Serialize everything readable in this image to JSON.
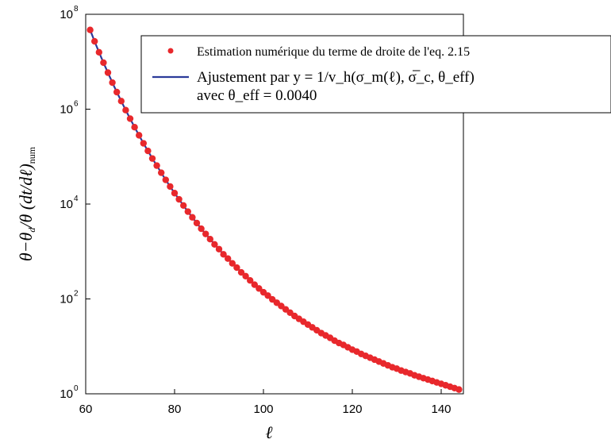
{
  "chart_data": {
    "type": "scatter",
    "x": [
      61,
      62,
      63,
      64,
      65,
      66,
      67,
      68,
      69,
      70,
      71,
      72,
      73,
      74,
      75,
      76,
      77,
      78,
      79,
      80,
      81,
      82,
      83,
      84,
      85,
      86,
      87,
      88,
      89,
      90,
      91,
      92,
      93,
      94,
      95,
      96,
      97,
      98,
      99,
      100,
      101,
      102,
      103,
      104,
      105,
      106,
      107,
      108,
      109,
      110,
      111,
      112,
      113,
      114,
      115,
      116,
      117,
      118,
      119,
      120,
      121,
      122,
      123,
      124,
      125,
      126,
      127,
      128,
      129,
      130,
      131,
      132,
      133,
      134,
      135,
      136,
      137,
      138,
      139,
      140,
      141,
      142,
      143,
      144
    ],
    "series": [
      {
        "name": "Estimation numérique du terme de droite de l'eq. 2.15",
        "kind": "scatter",
        "color": "#e8282c",
        "y_log10": [
          7.67,
          7.43,
          7.2,
          6.98,
          6.77,
          6.56,
          6.36,
          6.17,
          5.98,
          5.8,
          5.62,
          5.45,
          5.28,
          5.12,
          4.96,
          4.81,
          4.66,
          4.51,
          4.37,
          4.23,
          4.1,
          3.97,
          3.84,
          3.72,
          3.6,
          3.48,
          3.37,
          3.26,
          3.15,
          3.05,
          2.94,
          2.85,
          2.75,
          2.66,
          2.56,
          2.48,
          2.39,
          2.3,
          2.22,
          2.14,
          2.07,
          1.99,
          1.92,
          1.85,
          1.78,
          1.71,
          1.64,
          1.58,
          1.52,
          1.46,
          1.4,
          1.34,
          1.28,
          1.23,
          1.18,
          1.12,
          1.07,
          1.03,
          0.98,
          0.93,
          0.89,
          0.84,
          0.8,
          0.76,
          0.72,
          0.68,
          0.64,
          0.6,
          0.56,
          0.53,
          0.49,
          0.46,
          0.43,
          0.39,
          0.36,
          0.33,
          0.3,
          0.27,
          0.24,
          0.21,
          0.18,
          0.15,
          0.12,
          0.09
        ]
      },
      {
        "name": "Ajustement par y = 1/v_h(σ_m(ℓ), σ̅_c, θ_eff) avec θ_eff = 0.0040",
        "kind": "line",
        "color": "#2b3b9a",
        "y_log10": [
          7.67,
          7.43,
          7.2,
          6.98,
          6.77,
          6.56,
          6.36,
          6.17,
          5.98,
          5.8,
          5.62,
          5.45,
          5.28,
          5.12,
          4.96,
          4.81,
          4.66,
          4.51,
          4.37,
          4.23,
          4.1,
          3.97,
          3.84,
          3.72,
          3.6,
          3.48,
          3.37,
          3.26,
          3.15,
          3.05,
          2.94,
          2.85,
          2.75,
          2.66,
          2.56,
          2.48,
          2.39,
          2.3,
          2.22,
          2.14,
          2.07,
          1.99,
          1.92,
          1.85,
          1.78,
          1.71,
          1.64,
          1.58,
          1.52,
          1.46,
          1.4,
          1.34,
          1.28,
          1.23,
          1.18,
          1.12,
          1.07,
          1.03,
          0.98,
          0.93,
          0.89,
          0.84,
          0.8,
          0.76,
          0.72,
          0.68,
          0.64,
          0.6,
          0.56,
          0.53,
          0.49,
          0.46,
          0.43,
          0.39,
          0.36,
          0.33,
          0.3,
          0.27,
          0.24,
          0.21,
          0.18,
          0.15,
          0.12,
          0.09
        ]
      }
    ],
    "xlim": [
      60,
      145
    ],
    "ylim_log10": [
      0,
      8
    ],
    "y_scale": "log",
    "x_ticks": [
      60,
      80,
      100,
      120,
      140
    ],
    "y_ticks": [
      {
        "base": "10",
        "exp": "0"
      },
      {
        "base": "10",
        "exp": "2"
      },
      {
        "base": "10",
        "exp": "4"
      },
      {
        "base": "10",
        "exp": "6"
      },
      {
        "base": "10",
        "exp": "8"
      }
    ],
    "xlabel": "ℓ",
    "ylabel": "θ−θ_d / θ (dt/dℓ)_num",
    "grid": false,
    "legend_position": "top-right",
    "legend": {
      "entry1": "Estimation numérique du terme de droite de l'eq. 2.15",
      "entry2_line1": "Ajustement par y = 1/v_h(σ_m(ℓ), σ̅_c, θ_eff)",
      "entry2_line2": "avec θ_eff = 0.0040"
    }
  }
}
